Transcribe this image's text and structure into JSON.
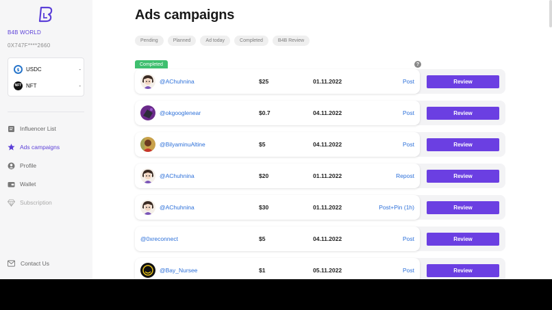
{
  "sidebar": {
    "brand": "B4B WORLD",
    "address": "0X747F****2660",
    "wallet": [
      {
        "symbol": "USDC",
        "value": "-",
        "icon": "usdc-icon"
      },
      {
        "symbol": "NFT",
        "value": "-",
        "icon": "nft-icon"
      }
    ],
    "nav": [
      {
        "label": "Influencer List",
        "icon": "list-icon",
        "state": "normal"
      },
      {
        "label": "Ads campaigns",
        "icon": "star-icon",
        "state": "active"
      },
      {
        "label": "Profile",
        "icon": "user-icon",
        "state": "normal"
      },
      {
        "label": "Wallet",
        "icon": "wallet-icon",
        "state": "normal"
      },
      {
        "label": "Subscription",
        "icon": "diamond-icon",
        "state": "disabled"
      }
    ],
    "contact": "Contact Us"
  },
  "main": {
    "title": "Ads campaigns",
    "filters": [
      "Pending",
      "Planned",
      "Ad today",
      "Completed",
      "B4B Review"
    ],
    "section_tag": "Completed",
    "help": "?",
    "review_label": "Review",
    "rows": [
      {
        "handle": "@AChuhnina",
        "amount": "$25",
        "date": "01.11.2022",
        "type": "Post",
        "avatar": "anime"
      },
      {
        "handle": "@okgooglenear",
        "amount": "$0.7",
        "date": "04.11.2022",
        "type": "Post",
        "avatar": "purple"
      },
      {
        "handle": "@BilyaminuAltine",
        "amount": "$5",
        "date": "04.11.2022",
        "type": "Post",
        "avatar": "photo"
      },
      {
        "handle": "@AChuhnina",
        "amount": "$20",
        "date": "01.11.2022",
        "type": "Repost",
        "avatar": "anime"
      },
      {
        "handle": "@AChuhnina",
        "amount": "$30",
        "date": "01.11.2022",
        "type": "Post+Pin (1h)",
        "avatar": "anime"
      },
      {
        "handle": "@0xreconnect",
        "amount": "$5",
        "date": "04.11.2022",
        "type": "Post",
        "avatar": "none"
      },
      {
        "handle": "@Bay_Nursee",
        "amount": "$1",
        "date": "05.11.2022",
        "type": "Post",
        "avatar": "dark"
      }
    ]
  },
  "colors": {
    "accent": "#5b3fd8",
    "button": "#6b3fe2",
    "link": "#2b6fd9",
    "completed": "#3fbf6f"
  }
}
